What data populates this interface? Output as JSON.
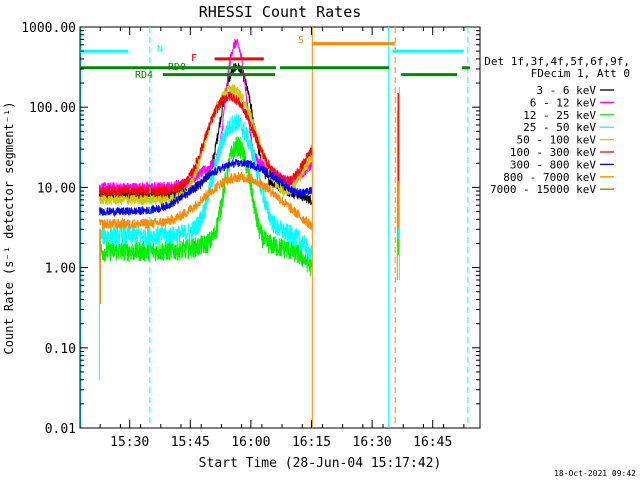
{
  "chart_data": {
    "type": "line",
    "title": "RHESSI Count Rates",
    "xlabel": "Start Time (28-Jun-04 15:17:42)",
    "ylabel": "Count Rate (s⁻¹ detector segment⁻¹)",
    "yscale": "log",
    "ylim": [
      0.01,
      1000
    ],
    "xlim_minutes_since_start": [
      0,
      99
    ],
    "ytick_labels": [
      "0.01",
      "0.10",
      "1.00",
      "10.00",
      "100.00",
      "1000.00"
    ],
    "ytick_values": [
      0.01,
      0.1,
      1,
      10,
      100,
      1000
    ],
    "xtick_labels": [
      "15:30",
      "15:45",
      "16:00",
      "16:15",
      "16:30",
      "16:45"
    ],
    "xtick_minutes": [
      12.3,
      27.3,
      42.3,
      57.3,
      72.3,
      87.3
    ],
    "grid": false,
    "legend_position": "right",
    "legend_header": [
      "Det 1f,3f,4f,5f,6f,9f,",
      "FDecim 1, Att 0"
    ],
    "series": [
      {
        "name": "3 - 6 keV",
        "color": "#000000",
        "base": 8.0,
        "peak": 300,
        "peak_min": 38.8,
        "width": 2.2,
        "bump": 3.0,
        "end": 6,
        "noise": 0.15
      },
      {
        "name": "6 - 12 keV",
        "color": "#ff00ff",
        "base": 10.0,
        "peak": 600,
        "peak_min": 38.6,
        "width": 1.4,
        "bump": 4.0,
        "end": 20,
        "noise": 0.15
      },
      {
        "name": "12 - 25 keV",
        "color": "#00ee00",
        "base": 1.6,
        "peak": 30,
        "peak_min": 39.0,
        "width": 2.0,
        "bump": 1.3,
        "end": 0.5,
        "noise": 0.3
      },
      {
        "name": "25 - 50 keV",
        "color": "#00ffff",
        "base": 2.5,
        "peak": 60,
        "peak_min": 38.5,
        "width": 3.0,
        "bump": 1.8,
        "end": 0.6,
        "noise": 0.28
      },
      {
        "name": "50 - 100 keV",
        "color": "#cccc00",
        "base": 7.0,
        "peak": 150,
        "peak_min": 37.5,
        "width": 3.5,
        "bump": 4.0,
        "end": 25,
        "noise": 0.15
      },
      {
        "name": "100 - 300 keV",
        "color": "#ff0000",
        "base": 9.0,
        "peak": 110,
        "peak_min": 37.0,
        "width": 3.5,
        "bump": 5.0,
        "end": 30,
        "noise": 0.15
      },
      {
        "name": "300 - 800 keV",
        "color": "#0000ff",
        "base": 5.0,
        "peak": 13,
        "peak_min": 40.0,
        "width": 8.0,
        "bump": 1.0,
        "end": 8,
        "noise": 0.12
      },
      {
        "name": "800 - 7000 keV",
        "color": "#ff8800",
        "base": 3.5,
        "peak": 8.5,
        "peak_min": 40.0,
        "width": 7.0,
        "bump": 1.0,
        "end": 2.5,
        "noise": 0.15
      },
      {
        "name": "7000 - 15000 keV",
        "color": "#887700",
        "base": 0,
        "peak": 0,
        "peak_min": 0,
        "width": 1,
        "bump": 0,
        "end": 0,
        "noise": 0
      }
    ],
    "data_span_minutes": [
      4.8,
      57.5
    ],
    "late_segment_minutes": [
      78.8,
      79.2
    ],
    "flag_bars": [
      {
        "label": "N",
        "color": "#00ffff",
        "segments": [
          [
            0,
            12.0
          ],
          [
            77.3,
            95.0
          ]
        ],
        "level": 500
      },
      {
        "label": "F",
        "color": "#ff0000",
        "segments": [
          [
            33.3,
            45.5
          ]
        ],
        "level": 400
      },
      {
        "label": "RD0",
        "color": "#008800",
        "segments": [
          [
            0,
            48.5
          ],
          [
            49.5,
            76.5
          ],
          [
            94.5,
            96.5
          ]
        ],
        "level": 310
      },
      {
        "label": "RD4",
        "color": "#008800",
        "segments": [
          [
            20.5,
            48.3
          ],
          [
            79.5,
            93.3
          ]
        ],
        "level": 255
      },
      {
        "label": "S",
        "color": "#ff8800",
        "segments": [
          [
            57.5,
            77.9
          ]
        ],
        "level": 620
      }
    ],
    "vertical_lines": [
      {
        "minute": 17.3,
        "color": "#00ffff",
        "style": "dashed"
      },
      {
        "minute": 76.4,
        "color": "#00ffff",
        "style": "solid"
      },
      {
        "minute": 78.0,
        "color": "#ff8800",
        "style": "dashed"
      },
      {
        "minute": 96.0,
        "color": "#00ffff",
        "style": "dashed"
      },
      {
        "minute": 57.5,
        "color": "#ff8800",
        "style": "solid"
      }
    ],
    "timestamp": "18-Oct-2021 09:42"
  }
}
